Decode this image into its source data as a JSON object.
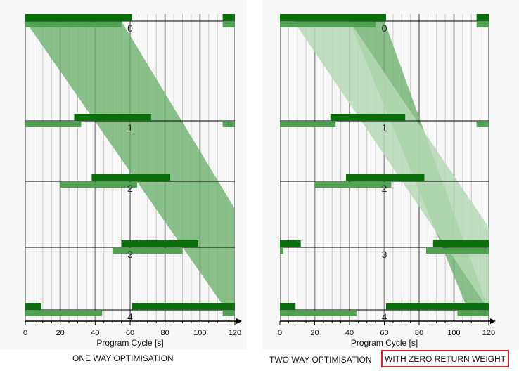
{
  "colors": {
    "dark_bar": "#0a6e0a",
    "mid_bar": "#4fa24f",
    "band": "#6aaf6a",
    "light_band": "#b5d8b5",
    "highlight_border": "#e0202a"
  },
  "captions": {
    "left": "ONE WAY OPTIMISATION",
    "right_prefix": "TWO WAY OPTIMISATION",
    "right_highlight": "WITH ZERO RETURN WEIGHT"
  },
  "chart_data": [
    {
      "type": "bar",
      "xlabel": "Program Cycle [s]",
      "xlim": [
        0,
        120
      ],
      "x_ticks": [
        0,
        20,
        40,
        60,
        80,
        100,
        120
      ],
      "stations": [
        "0",
        "1",
        "2",
        "3",
        "4"
      ],
      "green_windows": [
        {
          "station": 0,
          "segments": [
            [
              0,
              61
            ],
            [
              113,
              120
            ]
          ]
        },
        {
          "station": 1,
          "segments": [
            [
              28,
              72
            ]
          ]
        },
        {
          "station": 2,
          "segments": [
            [
              38,
              83
            ]
          ]
        },
        {
          "station": 3,
          "segments": [
            [
              55,
              99
            ]
          ]
        },
        {
          "station": 4,
          "segments": [
            [
              0,
              9
            ],
            [
              61,
              120
            ]
          ]
        }
      ],
      "return_windows": [
        {
          "station": 0,
          "segments": [
            [
              0,
              55
            ],
            [
              113,
              120
            ]
          ]
        },
        {
          "station": 1,
          "segments": [
            [
              0,
              32
            ],
            [
              113,
              120
            ]
          ]
        },
        {
          "station": 2,
          "segments": [
            [
              20,
              64
            ]
          ]
        },
        {
          "station": 3,
          "segments": [
            [
              50,
              90
            ]
          ]
        },
        {
          "station": 4,
          "segments": [
            [
              0,
              44
            ],
            [
              113,
              120
            ]
          ]
        }
      ],
      "bands": [
        {
          "direction": "outbound",
          "start_station": 0,
          "start": [
            0,
            55
          ],
          "end_station": 4,
          "end": [
            115,
            155
          ],
          "style": "band"
        }
      ]
    },
    {
      "type": "bar",
      "xlabel": "Program Cycle [s]",
      "xlim": [
        0,
        120
      ],
      "x_ticks": [
        0,
        20,
        40,
        60,
        80,
        100,
        120
      ],
      "stations": [
        "0",
        "1",
        "2",
        "3",
        "4"
      ],
      "green_windows": [
        {
          "station": 0,
          "segments": [
            [
              0,
              61
            ],
            [
              113,
              120
            ]
          ]
        },
        {
          "station": 1,
          "segments": [
            [
              29,
              72
            ]
          ]
        },
        {
          "station": 2,
          "segments": [
            [
              38,
              83
            ]
          ]
        },
        {
          "station": 3,
          "segments": [
            [
              0,
              12
            ],
            [
              88,
              120
            ]
          ]
        },
        {
          "station": 4,
          "segments": [
            [
              0,
              9
            ],
            [
              61,
              120
            ]
          ]
        }
      ],
      "return_windows": [
        {
          "station": 0,
          "segments": [
            [
              0,
              55
            ],
            [
              113,
              120
            ]
          ]
        },
        {
          "station": 1,
          "segments": [
            [
              0,
              32
            ],
            [
              113,
              120
            ]
          ]
        },
        {
          "station": 2,
          "segments": [
            [
              20,
              64
            ]
          ]
        },
        {
          "station": 3,
          "segments": [
            [
              0,
              2
            ],
            [
              84,
              120
            ]
          ]
        },
        {
          "station": 4,
          "segments": [
            [
              0,
              44
            ],
            [
              102,
              120
            ]
          ]
        }
      ],
      "bands": [
        {
          "direction": "outbound",
          "start_station": 0,
          "start": [
            40,
            60
          ],
          "end_station": 4,
          "end": [
            108,
            120
          ],
          "style": "band"
        },
        {
          "direction": "outbound",
          "start_station": 0,
          "start": [
            8,
            40
          ],
          "end_station": 4,
          "end": [
            120,
            152
          ],
          "style": "light_band"
        }
      ]
    }
  ]
}
